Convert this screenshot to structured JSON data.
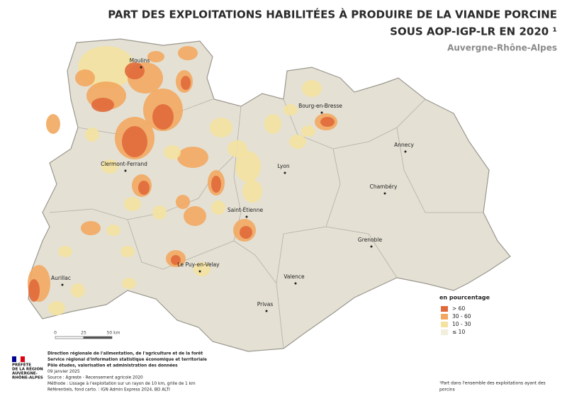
{
  "header": {
    "title_lines": [
      "PART DES EXPLOITATIONS HABILITÉES À PRODUIRE DE LA VIANDE PORCINE",
      "SOUS AOP-IGP-LR EN 2020 ¹"
    ],
    "subtitle": "Auvergne-Rhône-Alpes"
  },
  "cities": [
    "Moulins",
    "Bourg-en-Bresse",
    "Annecy",
    "Clermont-Ferrand",
    "Lyon",
    "Chambéry",
    "Saint-Étienne",
    "Grenoble",
    "Le Puy-en-Velay",
    "Aurillac",
    "Valence",
    "Privas"
  ],
  "legend": {
    "title": "en pourcentage",
    "items": [
      {
        "label": "> 60",
        "color": "#e06a3b"
      },
      {
        "label": "30 - 60",
        "color": "#f2a860"
      },
      {
        "label": "10 - 30",
        "color": "#f3e2a0"
      },
      {
        "label": "≤ 10",
        "color": "#f3efdc"
      }
    ]
  },
  "scale": {
    "labels": [
      "0",
      "25",
      "50 km"
    ]
  },
  "logo": {
    "lines": [
      "PRÉFÈTE",
      "DE LA RÉGION",
      "AUVERGNE-",
      "RHÔNE-ALPES"
    ]
  },
  "footer": {
    "lines": [
      "Direction régionale de l'alimentation, de l'agriculture et de la forêt",
      "Service régional d'information statistique économique et territoriale",
      "Pôle études, valorisation et administration des données",
      "09 janvier 2025",
      "Source : Agreste - Recensement agricole 2020",
      "Méthode : Lissage à l'exploitation sur un rayon de 10 km, grille de 1 km",
      "Référentiels, fond carto. : IGN Admin Express 2024, BD ALTI"
    ]
  },
  "footnote": [
    "¹Part dans l'ensemble des exploitations ayant des",
    "porcins"
  ]
}
